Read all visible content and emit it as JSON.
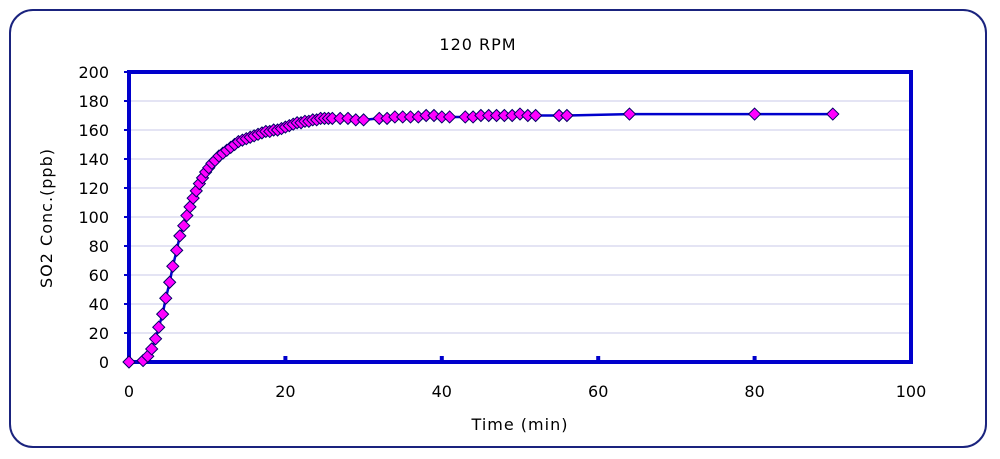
{
  "chart_data": {
    "type": "line",
    "title": "120 RPM",
    "xlabel": "Time (min)",
    "ylabel": "SO2 Conc.(ppb)",
    "xlim": [
      0,
      100
    ],
    "ylim": [
      0,
      200
    ],
    "x_ticks": [
      0,
      20,
      40,
      60,
      80,
      100
    ],
    "y_ticks": [
      0,
      20,
      40,
      60,
      80,
      100,
      120,
      140,
      160,
      180,
      200
    ],
    "grid": true,
    "legend": "none",
    "colors": {
      "line": "#0000cc",
      "marker_fill": "#ff00ff",
      "marker_edge": "#000066",
      "axes": "#0000cc",
      "grid": "#c8c8e8"
    },
    "series": [
      {
        "x": [
          0,
          1.8,
          2.4,
          2.9,
          3.4,
          3.8,
          4.3,
          4.7,
          5.2,
          5.6,
          6.1,
          6.5,
          7.0,
          7.4,
          7.8,
          8.2,
          8.6,
          9.0,
          9.4,
          9.8,
          10.2,
          10.6,
          11.0,
          11.5,
          12.0,
          12.5,
          13.0,
          13.5,
          14.0,
          14.5,
          15.0,
          15.5,
          16.0,
          16.5,
          17.0,
          17.5,
          18.0,
          18.5,
          19.0,
          19.5,
          20.0,
          20.5,
          21.0,
          21.5,
          22.0,
          22.5,
          23.0,
          23.5,
          24.0,
          24.5,
          25.0,
          25.5,
          26.0,
          27.0,
          28.0,
          29.0,
          30.0,
          32.0,
          33.0,
          34.0,
          35.0,
          36.0,
          37.0,
          38.0,
          39.0,
          40.0,
          41.0,
          43.0,
          44.0,
          45.0,
          46.0,
          47.0,
          48.0,
          49.0,
          50.0,
          51.0,
          52.0,
          55.0,
          56.0,
          64.0,
          80.0,
          90.0
        ],
        "y": [
          0,
          1,
          4,
          9,
          16,
          24,
          33,
          44,
          55,
          66,
          77,
          87,
          94,
          101,
          107,
          113,
          118,
          123,
          127,
          131,
          134,
          137,
          139,
          142,
          144,
          146,
          148,
          150,
          152,
          153,
          154,
          155,
          156,
          157,
          158,
          159,
          159,
          160,
          160,
          161,
          162,
          163,
          164,
          165,
          165,
          166,
          166,
          167,
          167,
          168,
          168,
          168,
          168,
          168,
          168,
          167,
          167,
          168,
          168,
          169,
          169,
          169,
          169,
          170,
          170,
          169,
          169,
          169,
          169,
          170,
          170,
          170,
          170,
          170,
          171,
          170,
          170,
          170,
          170,
          171,
          171,
          171
        ]
      }
    ]
  }
}
